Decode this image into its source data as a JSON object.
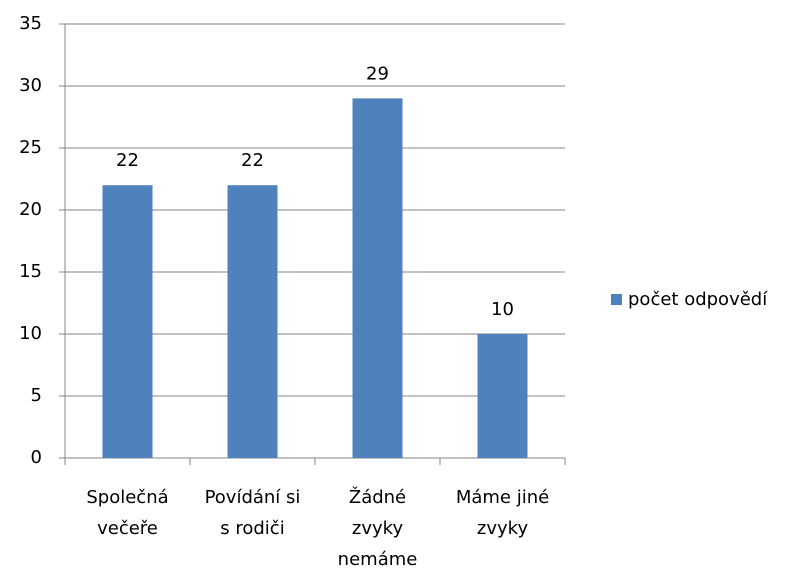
{
  "chart_data": {
    "type": "bar",
    "categories": [
      [
        "Společná",
        "večeře"
      ],
      [
        "Povídání si",
        "s rodiči"
      ],
      [
        "Žádné",
        "zvyky",
        "nemáme"
      ],
      [
        "Máme jiné",
        "zvyky"
      ]
    ],
    "series": [
      {
        "name": "počet odpovědí",
        "color": "#4f81bd",
        "values": [
          22,
          22,
          29,
          10
        ]
      }
    ],
    "ylim": [
      0,
      35
    ],
    "yticks": [
      0,
      5,
      10,
      15,
      20,
      25,
      30,
      35
    ],
    "grid": true,
    "legend": "right"
  }
}
